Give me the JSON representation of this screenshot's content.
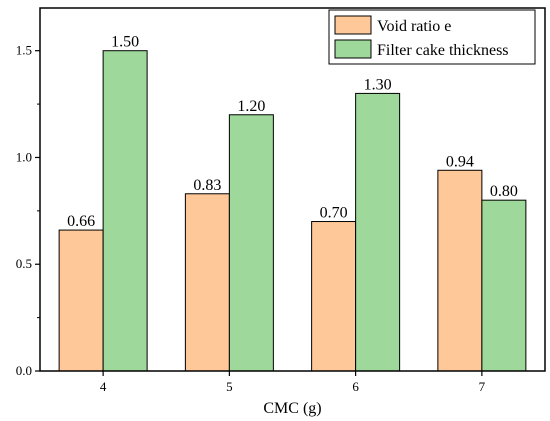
{
  "chart_data": {
    "type": "bar",
    "categories": [
      "4",
      "5",
      "6",
      "7"
    ],
    "series": [
      {
        "name": "Void ratio e",
        "values": [
          0.66,
          0.83,
          0.7,
          0.94
        ],
        "labels": [
          "0.66",
          "0.83",
          "0.70",
          "0.94"
        ],
        "color": "#FFC898"
      },
      {
        "name": "Filter cake thickness",
        "values": [
          1.5,
          1.2,
          1.3,
          0.8
        ],
        "labels": [
          "1.50",
          "1.20",
          "1.30",
          "0.80"
        ],
        "color": "#9ED89A"
      }
    ],
    "xlabel": "CMC (g)",
    "ylabel": "",
    "ylim": [
      0,
      1.7
    ],
    "yticks": [
      "0.0",
      "0.5",
      "1.0",
      "1.5"
    ],
    "ytick_values": [
      0,
      0.5,
      1.0,
      1.5
    ],
    "legend_position": "top-right",
    "grid": false,
    "edge_color": "#000000"
  }
}
